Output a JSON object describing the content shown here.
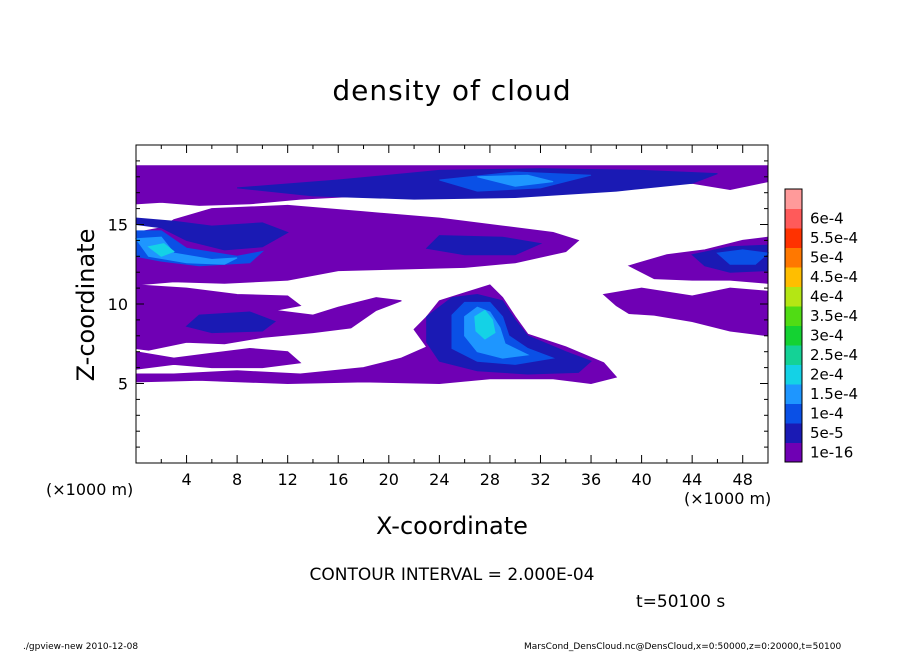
{
  "chart_data": {
    "type": "heatmap",
    "title": "density of cloud",
    "xlabel": "X-coordinate",
    "ylabel": "Z-coordinate",
    "x_unit": "(×1000 m)",
    "y_unit": "(×1000 m)",
    "xlim": [
      0,
      50
    ],
    "ylim": [
      0,
      20
    ],
    "x_ticks": [
      4,
      8,
      12,
      16,
      20,
      24,
      28,
      32,
      36,
      40,
      44,
      48
    ],
    "y_ticks": [
      5,
      10,
      15
    ],
    "colorbar": {
      "levels": [
        "1e-16",
        "5e-5",
        "1e-4",
        "1.5e-4",
        "2e-4",
        "2.5e-4",
        "3e-4",
        "3.5e-4",
        "4e-4",
        "4.5e-4",
        "5e-4",
        "5.5e-4",
        "6e-4"
      ],
      "colors": [
        "#6f00b4",
        "#1a1ab4",
        "#0a50e6",
        "#1e96ff",
        "#14d2e6",
        "#14d296",
        "#14d232",
        "#50dc14",
        "#b4e614",
        "#ffbe00",
        "#ff7800",
        "#ff3200",
        "#ff5a5a",
        "#ff9a9a"
      ]
    },
    "regions": [
      {
        "level": 0,
        "polygon": [
          [
            0,
            18.7
          ],
          [
            50,
            18.7
          ],
          [
            50,
            17.7
          ],
          [
            47,
            17.2
          ],
          [
            44,
            17.6
          ],
          [
            39,
            17.5
          ],
          [
            35,
            17.2
          ],
          [
            30,
            17.0
          ],
          [
            24,
            16.8
          ],
          [
            18,
            16.8
          ],
          [
            13,
            16.6
          ],
          [
            9,
            16.3
          ],
          [
            5,
            16.2
          ],
          [
            2,
            16.4
          ],
          [
            0,
            16.3
          ]
        ]
      },
      {
        "level": 0,
        "polygon": [
          [
            0,
            14.5
          ],
          [
            2,
            14.8
          ],
          [
            3,
            15.3
          ],
          [
            6,
            16.0
          ],
          [
            12,
            16.2
          ],
          [
            18,
            15.8
          ],
          [
            24,
            15.4
          ],
          [
            29,
            14.9
          ],
          [
            33,
            14.5
          ],
          [
            35,
            14.0
          ],
          [
            34,
            13.3
          ],
          [
            30,
            12.6
          ],
          [
            26,
            12.3
          ],
          [
            21,
            12.2
          ],
          [
            16,
            12.1
          ],
          [
            12,
            11.5
          ],
          [
            7,
            11.3
          ],
          [
            3,
            11.4
          ],
          [
            0,
            11.2
          ]
        ]
      },
      {
        "level": 0,
        "polygon": [
          [
            0,
            11.2
          ],
          [
            4,
            11.0
          ],
          [
            8,
            10.6
          ],
          [
            12,
            10.5
          ],
          [
            13,
            9.9
          ],
          [
            11,
            9.6
          ],
          [
            14,
            9.3
          ],
          [
            16,
            9.8
          ],
          [
            19,
            10.4
          ],
          [
            21,
            10.2
          ],
          [
            19,
            9.6
          ],
          [
            17,
            8.5
          ],
          [
            14,
            8.2
          ],
          [
            10,
            7.9
          ],
          [
            7,
            7.5
          ],
          [
            4,
            7.6
          ],
          [
            1,
            7.1
          ],
          [
            0,
            7.2
          ]
        ]
      },
      {
        "level": 0,
        "polygon": [
          [
            0,
            7.0
          ],
          [
            3,
            6.6
          ],
          [
            6,
            6.9
          ],
          [
            9,
            7.2
          ],
          [
            12,
            7.0
          ],
          [
            13,
            6.3
          ],
          [
            10,
            6.0
          ],
          [
            6,
            6.0
          ],
          [
            3,
            6.2
          ],
          [
            0,
            5.9
          ]
        ]
      },
      {
        "level": 0,
        "polygon": [
          [
            0,
            5.1
          ],
          [
            5,
            5.2
          ],
          [
            12,
            5.0
          ],
          [
            18,
            5.1
          ],
          [
            24,
            5.0
          ],
          [
            28,
            5.3
          ],
          [
            33,
            5.3
          ],
          [
            36,
            5.0
          ],
          [
            38,
            5.4
          ],
          [
            37,
            6.3
          ],
          [
            34,
            7.3
          ],
          [
            31,
            8.1
          ],
          [
            30,
            9.2
          ],
          [
            29,
            10.4
          ],
          [
            28,
            11.2
          ],
          [
            26,
            10.7
          ],
          [
            24,
            10.2
          ],
          [
            23,
            9.2
          ],
          [
            22,
            8.4
          ],
          [
            23,
            7.3
          ],
          [
            21,
            6.6
          ],
          [
            18,
            6.0
          ],
          [
            13,
            5.6
          ],
          [
            8,
            5.8
          ],
          [
            3,
            5.6
          ],
          [
            0,
            5.6
          ]
        ]
      },
      {
        "level": 0,
        "polygon": [
          [
            37,
            10.6
          ],
          [
            40,
            11.0
          ],
          [
            44,
            10.5
          ],
          [
            47,
            11.0
          ],
          [
            50,
            10.8
          ],
          [
            50,
            8.0
          ],
          [
            47,
            8.3
          ],
          [
            44,
            8.9
          ],
          [
            41,
            9.3
          ],
          [
            39,
            9.4
          ],
          [
            38,
            9.9
          ]
        ]
      },
      {
        "level": 0,
        "polygon": [
          [
            39,
            12.4
          ],
          [
            42,
            13.1
          ],
          [
            45,
            13.4
          ],
          [
            48,
            14.0
          ],
          [
            50,
            14.2
          ],
          [
            50,
            11.3
          ],
          [
            47,
            11.5
          ],
          [
            44,
            11.5
          ],
          [
            41,
            11.6
          ]
        ]
      },
      {
        "level": 1,
        "polygon": [
          [
            0,
            15.0
          ],
          [
            2,
            14.8
          ],
          [
            4,
            14.0
          ],
          [
            7,
            13.4
          ],
          [
            10,
            13.6
          ],
          [
            12,
            14.5
          ],
          [
            10,
            15.1
          ],
          [
            6,
            14.9
          ],
          [
            3,
            15.2
          ],
          [
            0,
            15.4
          ]
        ]
      },
      {
        "level": 1,
        "polygon": [
          [
            24,
            14.3
          ],
          [
            29,
            14.2
          ],
          [
            32,
            13.8
          ],
          [
            30,
            13.1
          ],
          [
            26,
            13.1
          ],
          [
            23,
            13.5
          ]
        ]
      },
      {
        "level": 1,
        "polygon": [
          [
            8,
            17.3
          ],
          [
            16,
            17.8
          ],
          [
            24,
            18.4
          ],
          [
            32,
            18.5
          ],
          [
            40,
            18.4
          ],
          [
            46,
            18.2
          ],
          [
            44,
            17.6
          ],
          [
            38,
            17.1
          ],
          [
            30,
            16.7
          ],
          [
            22,
            16.6
          ],
          [
            14,
            16.8
          ]
        ]
      },
      {
        "level": 1,
        "polygon": [
          [
            23,
            9.2
          ],
          [
            25,
            10.4
          ],
          [
            27,
            10.6
          ],
          [
            29,
            10.2
          ],
          [
            30,
            9.0
          ],
          [
            31,
            8.0
          ],
          [
            34,
            7.0
          ],
          [
            36,
            6.4
          ],
          [
            35,
            5.7
          ],
          [
            31,
            5.6
          ],
          [
            27,
            5.8
          ],
          [
            24,
            6.4
          ],
          [
            23,
            7.6
          ]
        ]
      },
      {
        "level": 1,
        "polygon": [
          [
            5,
            9.3
          ],
          [
            9,
            9.5
          ],
          [
            11,
            8.9
          ],
          [
            10,
            8.3
          ],
          [
            6,
            8.2
          ],
          [
            4,
            8.6
          ]
        ]
      },
      {
        "level": 1,
        "polygon": [
          [
            44,
            13.1
          ],
          [
            47,
            13.6
          ],
          [
            50,
            13.7
          ],
          [
            50,
            12.1
          ],
          [
            47,
            12.0
          ],
          [
            45,
            12.4
          ]
        ]
      },
      {
        "level": 2,
        "polygon": [
          [
            0,
            14.6
          ],
          [
            2,
            14.6
          ],
          [
            4,
            13.5
          ],
          [
            8,
            13.0
          ],
          [
            10,
            13.3
          ],
          [
            9,
            12.6
          ],
          [
            5,
            12.4
          ],
          [
            2,
            12.7
          ],
          [
            0,
            13.0
          ]
        ]
      },
      {
        "level": 2,
        "polygon": [
          [
            24,
            17.8
          ],
          [
            30,
            18.3
          ],
          [
            36,
            18.1
          ],
          [
            32,
            17.3
          ],
          [
            27,
            17.1
          ]
        ]
      },
      {
        "level": 2,
        "polygon": [
          [
            25,
            9.3
          ],
          [
            26,
            10.1
          ],
          [
            28,
            10.1
          ],
          [
            29,
            9.2
          ],
          [
            29.5,
            8.0
          ],
          [
            31,
            7.2
          ],
          [
            33,
            6.6
          ],
          [
            30,
            6.2
          ],
          [
            27,
            6.4
          ],
          [
            25,
            7.2
          ]
        ]
      },
      {
        "level": 2,
        "polygon": [
          [
            46,
            13.2
          ],
          [
            48,
            13.4
          ],
          [
            50,
            13.2
          ],
          [
            49,
            12.5
          ],
          [
            47,
            12.5
          ]
        ]
      },
      {
        "level": 3,
        "polygon": [
          [
            0,
            14.1
          ],
          [
            2,
            14.2
          ],
          [
            3,
            13.2
          ],
          [
            6,
            12.8
          ],
          [
            8,
            12.9
          ],
          [
            7,
            12.5
          ],
          [
            4,
            12.6
          ],
          [
            1,
            13.0
          ]
        ]
      },
      {
        "level": 3,
        "polygon": [
          [
            26,
            9.2
          ],
          [
            27,
            9.8
          ],
          [
            28,
            9.5
          ],
          [
            28.8,
            8.5
          ],
          [
            29.2,
            7.5
          ],
          [
            31,
            6.8
          ],
          [
            29,
            6.6
          ],
          [
            27,
            7.0
          ],
          [
            26,
            8.0
          ]
        ]
      },
      {
        "level": 3,
        "polygon": [
          [
            27,
            18.0
          ],
          [
            31,
            18.1
          ],
          [
            33,
            17.7
          ],
          [
            30,
            17.4
          ]
        ]
      },
      {
        "level": 4,
        "polygon": [
          [
            26.8,
            9.2
          ],
          [
            27.6,
            9.6
          ],
          [
            28.2,
            9.0
          ],
          [
            28.4,
            8.2
          ],
          [
            27.6,
            7.8
          ],
          [
            26.9,
            8.3
          ]
        ]
      },
      {
        "level": 4,
        "polygon": [
          [
            1,
            13.6
          ],
          [
            2.2,
            13.8
          ],
          [
            3,
            13.3
          ],
          [
            2,
            13.0
          ]
        ]
      }
    ]
  },
  "contour_text": "CONTOUR INTERVAL = 2.000E-04",
  "time_text": "t=50100 s",
  "footer": {
    "left": "./gpview-new  2010-12-08",
    "right": "MarsCond_DensCloud.nc@DensCloud,x=0:50000,z=0:20000,t=50100"
  }
}
